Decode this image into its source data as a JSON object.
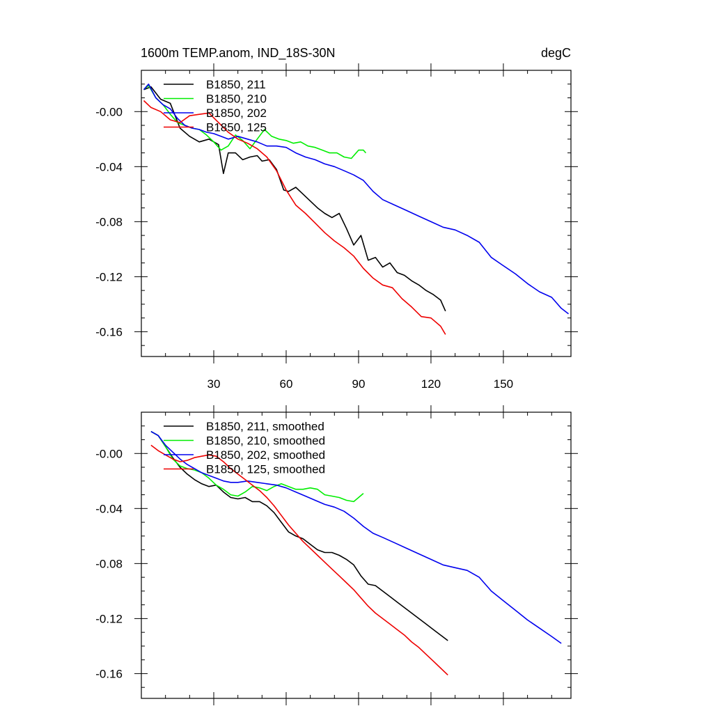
{
  "chart_data": [
    {
      "type": "line",
      "title_left": "1600m TEMP.anom, IND_18S-30N",
      "title_right": "degC",
      "xlabel": "",
      "ylabel": "",
      "xlim": [
        0,
        178
      ],
      "ylim": [
        -0.178,
        0.03
      ],
      "xticks": [
        30,
        60,
        90,
        120,
        150
      ],
      "xtick_labels": [
        "30",
        "60",
        "90",
        "120",
        "150"
      ],
      "yticks": [
        0.0,
        -0.04,
        -0.08,
        -0.12,
        -0.16
      ],
      "ytick_labels": [
        "-0.00",
        "-0.04",
        "-0.08",
        "-0.12",
        "-0.16"
      ],
      "legend_position": "top-left",
      "grid": false,
      "series": [
        {
          "name": "B1850, 211",
          "color": "#000000",
          "x": [
            1,
            4,
            8,
            12,
            16,
            20,
            24,
            28,
            32,
            34,
            36,
            39,
            42,
            45,
            48,
            50,
            53,
            56,
            59,
            61,
            64,
            67,
            70,
            73,
            76,
            79,
            82,
            85,
            88,
            91,
            94,
            97,
            100,
            103,
            106,
            109,
            112,
            115,
            118,
            121,
            124,
            126
          ],
          "y": [
            0.016,
            0.018,
            0.009,
            0.006,
            -0.012,
            -0.018,
            -0.022,
            -0.02,
            -0.024,
            -0.045,
            -0.03,
            -0.03,
            -0.035,
            -0.033,
            -0.032,
            -0.036,
            -0.035,
            -0.042,
            -0.057,
            -0.058,
            -0.055,
            -0.06,
            -0.065,
            -0.07,
            -0.074,
            -0.077,
            -0.074,
            -0.085,
            -0.097,
            -0.09,
            -0.108,
            -0.106,
            -0.113,
            -0.11,
            -0.117,
            -0.119,
            -0.123,
            -0.126,
            -0.13,
            -0.133,
            -0.137,
            -0.145
          ]
        },
        {
          "name": "B1850, 210",
          "color": "#00ee00",
          "x": [
            1,
            3,
            6,
            9,
            12,
            15,
            18,
            21,
            24,
            27,
            30,
            33,
            36,
            39,
            42,
            45,
            48,
            51,
            54,
            57,
            60,
            63,
            66,
            69,
            72,
            75,
            78,
            81,
            84,
            87,
            90,
            92,
            93
          ],
          "y": [
            0.016,
            0.019,
            0.01,
            0.005,
            -0.002,
            -0.008,
            -0.01,
            -0.012,
            -0.013,
            -0.017,
            -0.022,
            -0.028,
            -0.025,
            -0.017,
            -0.021,
            -0.027,
            -0.02,
            -0.013,
            -0.018,
            -0.02,
            -0.021,
            -0.023,
            -0.022,
            -0.025,
            -0.026,
            -0.028,
            -0.03,
            -0.03,
            -0.033,
            -0.034,
            -0.028,
            -0.028,
            -0.03
          ]
        },
        {
          "name": "B1850, 202",
          "color": "#0000ee",
          "x": [
            1,
            3,
            6,
            9,
            12,
            15,
            18,
            21,
            24,
            27,
            30,
            33,
            36,
            40,
            44,
            48,
            52,
            56,
            60,
            64,
            68,
            72,
            76,
            80,
            84,
            88,
            92,
            96,
            100,
            105,
            110,
            115,
            120,
            125,
            130,
            135,
            140,
            145,
            150,
            155,
            160,
            165,
            170,
            174,
            177
          ],
          "y": [
            0.016,
            0.02,
            0.01,
            0.005,
            0.002,
            -0.005,
            -0.01,
            -0.012,
            -0.013,
            -0.015,
            -0.016,
            -0.018,
            -0.02,
            -0.018,
            -0.02,
            -0.022,
            -0.025,
            -0.025,
            -0.026,
            -0.03,
            -0.033,
            -0.035,
            -0.038,
            -0.04,
            -0.043,
            -0.046,
            -0.05,
            -0.058,
            -0.064,
            -0.068,
            -0.072,
            -0.076,
            -0.08,
            -0.084,
            -0.086,
            -0.09,
            -0.095,
            -0.106,
            -0.112,
            -0.118,
            -0.125,
            -0.131,
            -0.135,
            -0.143,
            -0.147
          ]
        },
        {
          "name": "B1850, 125",
          "color": "#ee0000",
          "x": [
            1,
            4,
            8,
            12,
            16,
            20,
            24,
            28,
            32,
            36,
            40,
            44,
            48,
            52,
            56,
            60,
            64,
            68,
            72,
            76,
            80,
            84,
            88,
            92,
            96,
            100,
            104,
            108,
            112,
            116,
            120,
            124,
            126
          ],
          "y": [
            0.008,
            0.003,
            0.0,
            -0.006,
            -0.008,
            -0.003,
            -0.002,
            -0.001,
            -0.008,
            -0.015,
            -0.02,
            -0.023,
            -0.027,
            -0.033,
            -0.043,
            -0.057,
            -0.068,
            -0.074,
            -0.081,
            -0.088,
            -0.094,
            -0.099,
            -0.105,
            -0.114,
            -0.121,
            -0.126,
            -0.128,
            -0.136,
            -0.142,
            -0.149,
            -0.15,
            -0.156,
            -0.162
          ]
        }
      ]
    },
    {
      "type": "line",
      "xlim": [
        0,
        178
      ],
      "ylim": [
        -0.178,
        0.03
      ],
      "xticks": [
        30,
        60,
        90,
        120,
        150
      ],
      "yticks": [
        0.0,
        -0.04,
        -0.08,
        -0.12,
        -0.16
      ],
      "ytick_labels": [
        "-0.00",
        "-0.04",
        "-0.08",
        "-0.12",
        "-0.16"
      ],
      "legend_position": "top-left",
      "grid": false,
      "series": [
        {
          "name": "B1850, 211, smoothed",
          "color": "#000000",
          "x": [
            4,
            7,
            10,
            13,
            16,
            19,
            22,
            25,
            28,
            31,
            34,
            37,
            40,
            43,
            46,
            49,
            52,
            55,
            58,
            61,
            64,
            67,
            70,
            73,
            76,
            79,
            82,
            85,
            88,
            91,
            94,
            97,
            100,
            103,
            106,
            109,
            112,
            115,
            118,
            121,
            124,
            127
          ],
          "y": [
            0.016,
            0.013,
            0.005,
            -0.003,
            -0.01,
            -0.015,
            -0.019,
            -0.022,
            -0.024,
            -0.023,
            -0.028,
            -0.032,
            -0.033,
            -0.032,
            -0.035,
            -0.035,
            -0.038,
            -0.043,
            -0.05,
            -0.057,
            -0.06,
            -0.062,
            -0.066,
            -0.07,
            -0.072,
            -0.072,
            -0.074,
            -0.077,
            -0.081,
            -0.089,
            -0.095,
            -0.096,
            -0.1,
            -0.104,
            -0.108,
            -0.112,
            -0.116,
            -0.12,
            -0.124,
            -0.128,
            -0.132,
            -0.136
          ]
        },
        {
          "name": "B1850, 210, smoothed",
          "color": "#00ee00",
          "x": [
            4,
            7,
            10,
            13,
            16,
            19,
            22,
            25,
            28,
            31,
            34,
            37,
            40,
            43,
            46,
            49,
            52,
            55,
            58,
            61,
            64,
            67,
            70,
            73,
            76,
            79,
            82,
            85,
            88,
            90,
            92
          ],
          "y": [
            0.016,
            0.013,
            0.005,
            -0.004,
            -0.009,
            -0.011,
            -0.012,
            -0.014,
            -0.018,
            -0.023,
            -0.026,
            -0.03,
            -0.031,
            -0.028,
            -0.024,
            -0.025,
            -0.027,
            -0.024,
            -0.022,
            -0.024,
            -0.026,
            -0.026,
            -0.025,
            -0.026,
            -0.03,
            -0.031,
            -0.032,
            -0.034,
            -0.035,
            -0.032,
            -0.029
          ]
        },
        {
          "name": "B1850, 202, smoothed",
          "color": "#0000ee",
          "x": [
            4,
            7,
            10,
            13,
            16,
            19,
            22,
            25,
            28,
            31,
            34,
            37,
            40,
            44,
            48,
            52,
            56,
            60,
            64,
            68,
            72,
            76,
            80,
            84,
            88,
            92,
            96,
            100,
            105,
            110,
            115,
            120,
            125,
            130,
            135,
            140,
            145,
            150,
            155,
            160,
            165,
            170,
            174
          ],
          "y": [
            0.016,
            0.013,
            0.006,
            0.001,
            -0.004,
            -0.008,
            -0.011,
            -0.014,
            -0.016,
            -0.018,
            -0.02,
            -0.021,
            -0.021,
            -0.02,
            -0.021,
            -0.022,
            -0.023,
            -0.025,
            -0.028,
            -0.031,
            -0.034,
            -0.037,
            -0.039,
            -0.042,
            -0.047,
            -0.053,
            -0.058,
            -0.061,
            -0.065,
            -0.069,
            -0.073,
            -0.077,
            -0.081,
            -0.083,
            -0.085,
            -0.09,
            -0.1,
            -0.107,
            -0.114,
            -0.121,
            -0.127,
            -0.133,
            -0.138
          ]
        },
        {
          "name": "B1850, 125, smoothed",
          "color": "#ee0000",
          "x": [
            4,
            7,
            10,
            13,
            16,
            19,
            22,
            25,
            28,
            31,
            34,
            37,
            40,
            43,
            46,
            49,
            52,
            55,
            58,
            61,
            64,
            67,
            70,
            73,
            76,
            79,
            82,
            85,
            88,
            91,
            94,
            97,
            100,
            103,
            106,
            109,
            112,
            115,
            118,
            121,
            124,
            127
          ],
          "y": [
            0.006,
            0.002,
            -0.001,
            -0.004,
            -0.006,
            -0.005,
            -0.003,
            -0.002,
            -0.001,
            -0.002,
            -0.006,
            -0.011,
            -0.015,
            -0.019,
            -0.023,
            -0.027,
            -0.032,
            -0.038,
            -0.045,
            -0.052,
            -0.058,
            -0.064,
            -0.069,
            -0.074,
            -0.079,
            -0.084,
            -0.089,
            -0.094,
            -0.099,
            -0.105,
            -0.111,
            -0.116,
            -0.12,
            -0.124,
            -0.128,
            -0.132,
            -0.137,
            -0.141,
            -0.146,
            -0.151,
            -0.156,
            -0.161
          ]
        }
      ]
    }
  ]
}
